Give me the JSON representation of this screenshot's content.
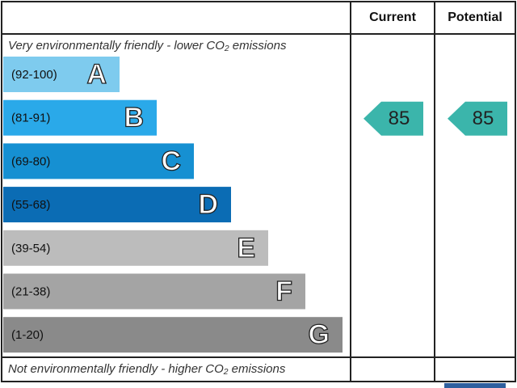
{
  "header": {
    "current": "Current",
    "potential": "Potential"
  },
  "top_note": "Very environmentally friendly - lower CO₂ emissions",
  "bottom_note": "Not environmentally friendly - higher CO₂ emissions",
  "bands": [
    {
      "range": "(92-100)",
      "letter": "A",
      "color": "#7ecbee"
    },
    {
      "range": "(81-91)",
      "letter": "B",
      "color": "#2aa9e9"
    },
    {
      "range": "(69-80)",
      "letter": "C",
      "color": "#1690d2"
    },
    {
      "range": "(55-68)",
      "letter": "D",
      "color": "#0b6cb4"
    },
    {
      "range": "(39-54)",
      "letter": "E",
      "color": "#bcbcbc"
    },
    {
      "range": "(21-38)",
      "letter": "F",
      "color": "#a4a4a4"
    },
    {
      "range": "(1-20)",
      "letter": "G",
      "color": "#8a8a8a"
    }
  ],
  "current": 85,
  "potential": 85,
  "arrow_color": "#3bb5ab"
}
